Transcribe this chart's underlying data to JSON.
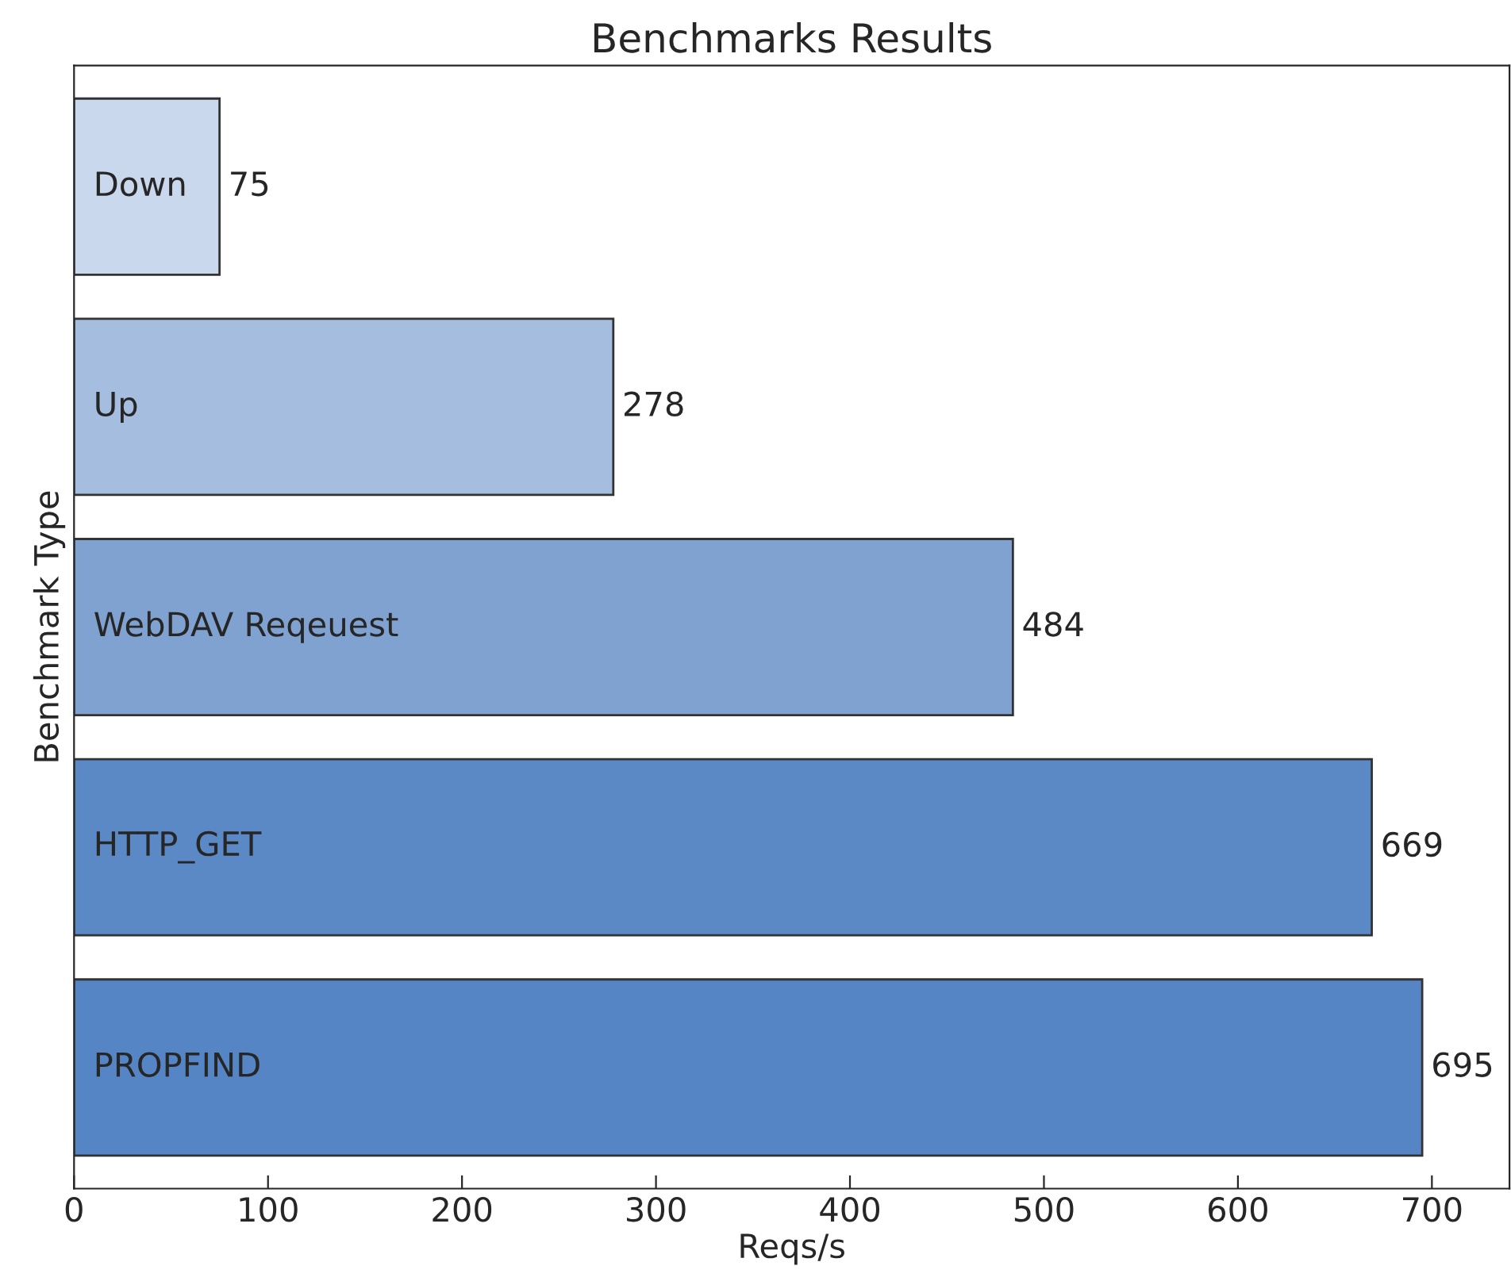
{
  "chart_data": {
    "type": "bar",
    "orientation": "horizontal",
    "title": "Benchmarks Results",
    "xlabel": "Reqs/s",
    "ylabel": "Benchmark Type",
    "categories": [
      "Down",
      "Up",
      "WebDAV Reqeuest",
      "HTTP_GET",
      "PROPFIND"
    ],
    "values": [
      75,
      278,
      484,
      669,
      695
    ],
    "colors": [
      "#c9d8ec",
      "#a5bedf",
      "#7fa2d1",
      "#5b89c5",
      "#5585c4"
    ],
    "data_labels": true,
    "xlim": [
      0,
      740
    ],
    "xticks": [
      0,
      100,
      200,
      300,
      400,
      500,
      600,
      700
    ],
    "tick_labels": "x",
    "grid": false,
    "legend": false
  }
}
